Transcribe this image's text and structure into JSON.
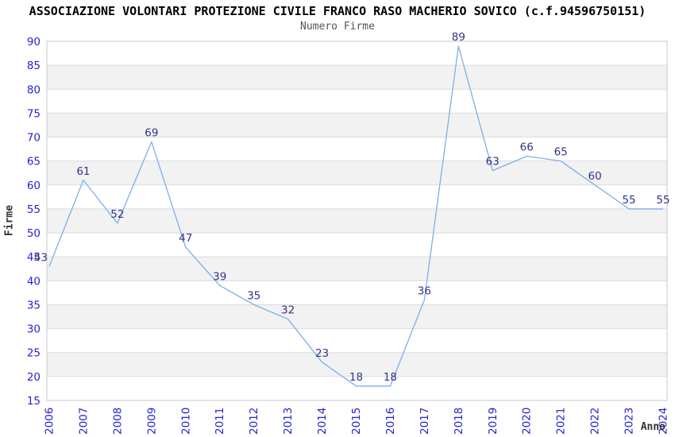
{
  "chart_data": {
    "type": "line",
    "title": "ASSOCIAZIONE VOLONTARI PROTEZIONE CIVILE FRANCO RASO MACHERIO SOVICO (c.f.94596750151)",
    "subtitle": "Numero Firme",
    "xlabel": "Anno",
    "ylabel": "Firme",
    "categories": [
      "2006",
      "2007",
      "2008",
      "2009",
      "2010",
      "2011",
      "2012",
      "2013",
      "2014",
      "2015",
      "2016",
      "2017",
      "2018",
      "2019",
      "2020",
      "2021",
      "2022",
      "2023",
      "2024"
    ],
    "values": [
      43,
      61,
      52,
      69,
      47,
      39,
      35,
      32,
      23,
      18,
      18,
      36,
      89,
      63,
      66,
      65,
      60,
      55,
      55
    ],
    "ylim": [
      15,
      90
    ],
    "ytick_step": 5,
    "grid": true,
    "legend_position": "none",
    "band_fill": "alternating-horizontal",
    "colors": {
      "line": "#7cb0e8",
      "tick_label": "#2424cf",
      "point_label": "#333388",
      "band": "#f2f2f2",
      "gridline": "#dcdcdc",
      "plot_border": "#c8c8c8",
      "axis_title": "#333333",
      "title": "#000000",
      "subtitle": "#555555",
      "background": "#ffffff"
    }
  }
}
